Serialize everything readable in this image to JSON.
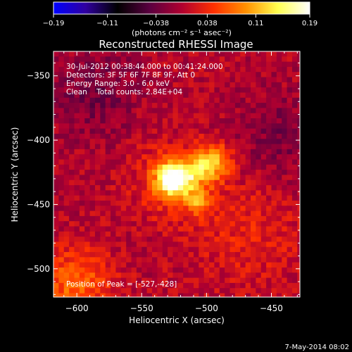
{
  "chart_data": {
    "type": "heatmap",
    "title": "Reconstructed RHESSI Image",
    "xlabel": "Heliocentric X (arcsec)",
    "ylabel": "Heliocentric Y (arcsec)",
    "xlim": [
      -618,
      -428
    ],
    "ylim": [
      -522,
      -331
    ],
    "x_ticks": [
      -600,
      -550,
      -500,
      -450
    ],
    "y_ticks": [
      -350,
      -400,
      -450,
      -500
    ],
    "x_tick_labels": [
      "−600",
      "−550",
      "−500",
      "−450"
    ],
    "y_tick_labels": [
      "−350",
      "−400",
      "−450",
      "−500"
    ],
    "colorbar": {
      "range": [
        -0.19,
        0.19
      ],
      "ticks": [
        -0.19,
        -0.11,
        -0.038,
        0.038,
        0.11,
        0.19
      ],
      "tick_labels": [
        "−0.19",
        "−0.11",
        "−0.038",
        "0.038",
        "0.11",
        "0.19"
      ],
      "label": "(photons cm⁻² s⁻¹ asec⁻²)",
      "colors": [
        "#0000ff",
        "#3000a0",
        "#000000",
        "#5a0040",
        "#b00030",
        "#ff3000",
        "#ff9000",
        "#ffff50",
        "#ffffff"
      ]
    },
    "annotations": [
      "30-Jul-2012 00:38:44.000 to 00:41:24.000",
      "Detectors: 3F 5F 6F 7F 8F 9F, Att 0",
      "Energy Range: 3.0 - 6.0 keV",
      "Clean    Total counts: 2.84E+04"
    ],
    "peak_label": "Position of Peak = [-527,-428]",
    "peak": [
      -527,
      -428
    ],
    "sources": [
      {
        "x": -527,
        "y": -428,
        "intensity": 0.19,
        "sigma": 9
      },
      {
        "x": -530,
        "y": -430,
        "intensity": 0.05,
        "sigma": 20
      },
      {
        "x": -497,
        "y": -415,
        "intensity": 0.11,
        "sigma": 10
      },
      {
        "x": -510,
        "y": -423,
        "intensity": 0.05,
        "sigma": 8
      },
      {
        "x": -508,
        "y": -446,
        "intensity": 0.07,
        "sigma": 7
      },
      {
        "x": -603,
        "y": -510,
        "intensity": 0.07,
        "sigma": 20
      },
      {
        "x": -470,
        "y": -470,
        "intensity": 0.03,
        "sigma": 30
      },
      {
        "x": -590,
        "y": -360,
        "intensity": -0.035,
        "sigma": 25
      },
      {
        "x": -445,
        "y": -395,
        "intensity": -0.03,
        "sigma": 25
      }
    ]
  },
  "footer": {
    "date": "7-May-2014 08:02"
  }
}
